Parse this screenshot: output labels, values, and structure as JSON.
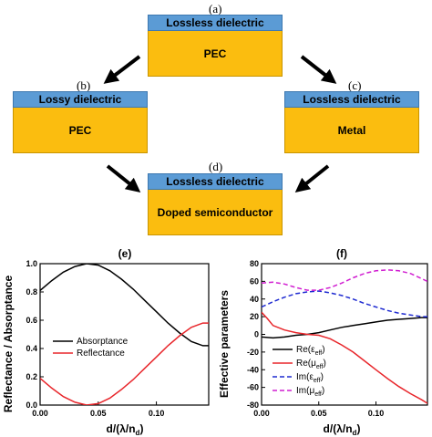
{
  "diagram": {
    "a": {
      "letter": "(a)",
      "top": "Lossless dielectric",
      "body": "PEC"
    },
    "b": {
      "letter": "(b)",
      "top": "Lossy dielectric",
      "body": "PEC"
    },
    "c": {
      "letter": "(c)",
      "top": "Lossless dielectric",
      "body": "Metal"
    },
    "d": {
      "letter": "(d)",
      "top": "Lossless dielectric",
      "body": "Doped semiconductor"
    },
    "colors": {
      "dielectric": "#5b9bd5",
      "substrate": "#fbbd0f"
    }
  },
  "chart_data": [
    {
      "type": "line",
      "panel": "(e)",
      "xlabel": "d/(λ/n",
      "xlabel_sub": "d",
      "xlabel_end": ")",
      "ylabel": "Reflectance / Absorptance",
      "xlim": [
        0,
        0.145
      ],
      "ylim": [
        0,
        1.0
      ],
      "xticks": [
        "0.00",
        "0.05",
        "0.10"
      ],
      "yticks": [
        "0.0",
        "0.2",
        "0.4",
        "0.6",
        "0.8",
        "1.0"
      ],
      "legend": "center-left",
      "series": [
        {
          "name": "Absorptance",
          "color": "#000000",
          "x": [
            0,
            0.01,
            0.02,
            0.03,
            0.04,
            0.05,
            0.06,
            0.07,
            0.08,
            0.09,
            0.1,
            0.11,
            0.12,
            0.13,
            0.14,
            0.145
          ],
          "y": [
            0.81,
            0.88,
            0.94,
            0.98,
            1.0,
            0.99,
            0.95,
            0.89,
            0.82,
            0.74,
            0.66,
            0.58,
            0.51,
            0.45,
            0.42,
            0.42
          ]
        },
        {
          "name": "Reflectance",
          "color": "#e8262b",
          "x": [
            0,
            0.01,
            0.02,
            0.03,
            0.04,
            0.05,
            0.06,
            0.07,
            0.08,
            0.09,
            0.1,
            0.11,
            0.12,
            0.13,
            0.14,
            0.145
          ],
          "y": [
            0.19,
            0.12,
            0.06,
            0.02,
            0.0,
            0.01,
            0.05,
            0.11,
            0.18,
            0.26,
            0.34,
            0.42,
            0.49,
            0.55,
            0.58,
            0.58
          ]
        }
      ]
    },
    {
      "type": "line",
      "panel": "(f)",
      "xlabel": "d/(λ/n",
      "xlabel_sub": "d",
      "xlabel_end": ")",
      "ylabel": "Effective parameters",
      "xlim": [
        0,
        0.145
      ],
      "ylim": [
        -80,
        80
      ],
      "xticks": [
        "0.00",
        "0.05",
        "0.10"
      ],
      "yticks": [
        "80",
        "60",
        "40",
        "20",
        "0",
        "-20",
        "-40",
        "-60",
        "-80"
      ],
      "legend": "bottom-center",
      "series": [
        {
          "name": "Re(ε",
          "sub": "eff",
          "accent": "~",
          "color": "#000000",
          "dash": "solid",
          "x": [
            0,
            0.01,
            0.02,
            0.03,
            0.04,
            0.05,
            0.06,
            0.07,
            0.08,
            0.09,
            0.1,
            0.11,
            0.12,
            0.13,
            0.14,
            0.145
          ],
          "y": [
            -3,
            -4,
            -3,
            -1,
            0,
            2,
            5,
            8,
            10,
            12,
            14,
            16,
            17,
            18,
            19,
            19
          ]
        },
        {
          "name": "Re(μ",
          "sub": "eff",
          "accent": "~",
          "color": "#e8262b",
          "dash": "solid",
          "x": [
            0,
            0.005,
            0.01,
            0.02,
            0.03,
            0.04,
            0.05,
            0.06,
            0.07,
            0.08,
            0.09,
            0.1,
            0.11,
            0.12,
            0.13,
            0.14,
            0.145
          ],
          "y": [
            25,
            18,
            10,
            5,
            2,
            0,
            -1,
            -5,
            -12,
            -20,
            -30,
            -40,
            -50,
            -59,
            -67,
            -74,
            -78
          ]
        },
        {
          "name": "Im(ε",
          "sub": "eff",
          "accent": "~",
          "color": "#1f2bd1",
          "dash": "dashed",
          "x": [
            0,
            0.01,
            0.02,
            0.03,
            0.04,
            0.05,
            0.06,
            0.07,
            0.08,
            0.09,
            0.1,
            0.11,
            0.12,
            0.13,
            0.14,
            0.145
          ],
          "y": [
            31,
            37,
            42,
            46,
            48,
            49,
            47,
            44,
            40,
            35,
            31,
            27,
            24,
            22,
            20,
            20
          ]
        },
        {
          "name": "Im(μ",
          "sub": "eff",
          "accent": "~",
          "color": "#d11fd1",
          "dash": "dashed",
          "x": [
            0,
            0.01,
            0.02,
            0.03,
            0.04,
            0.05,
            0.06,
            0.07,
            0.08,
            0.09,
            0.1,
            0.11,
            0.12,
            0.13,
            0.14,
            0.145
          ],
          "y": [
            58,
            59,
            57,
            53,
            50,
            50,
            53,
            58,
            64,
            69,
            72,
            73,
            72,
            69,
            63,
            60
          ]
        }
      ]
    }
  ]
}
